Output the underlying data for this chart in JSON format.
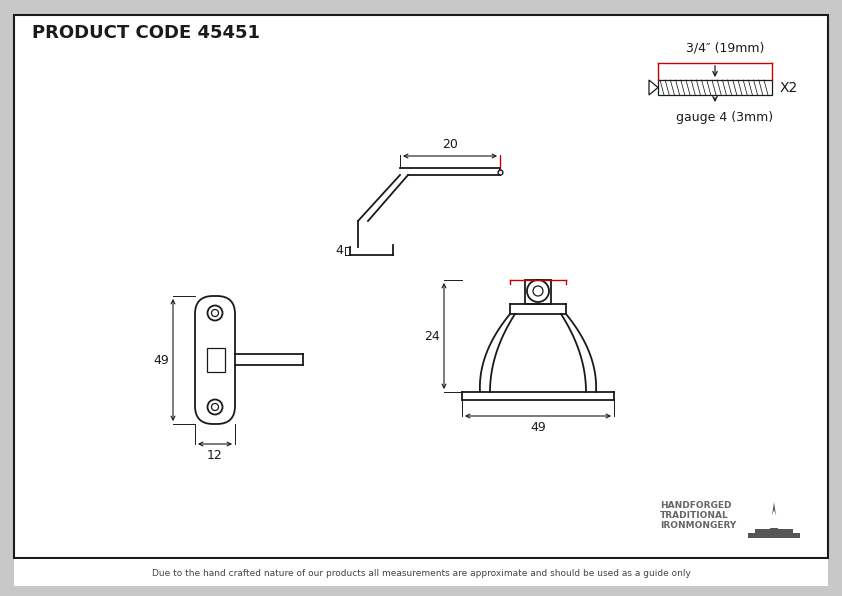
{
  "title": "PRODUCT CODE 45451",
  "line_color": "#1a1a1a",
  "dim_color": "#cc0000",
  "footer_text": "Due to the hand crafted nature of our products all measurements are approximate and should be used as a guide only",
  "screw_label_top": "3/4″ (19mm)",
  "screw_label_bottom": "gauge 4 (3mm)",
  "screw_x2": "X2",
  "brand_line1": "HANDFORGED",
  "brand_line2": "TRADITIONAL",
  "brand_line3": "IRONMONGERY",
  "dim_20": "20",
  "dim_4": "4",
  "dim_49_left": "49",
  "dim_12": "12",
  "dim_24": "24",
  "dim_49_right": "49"
}
